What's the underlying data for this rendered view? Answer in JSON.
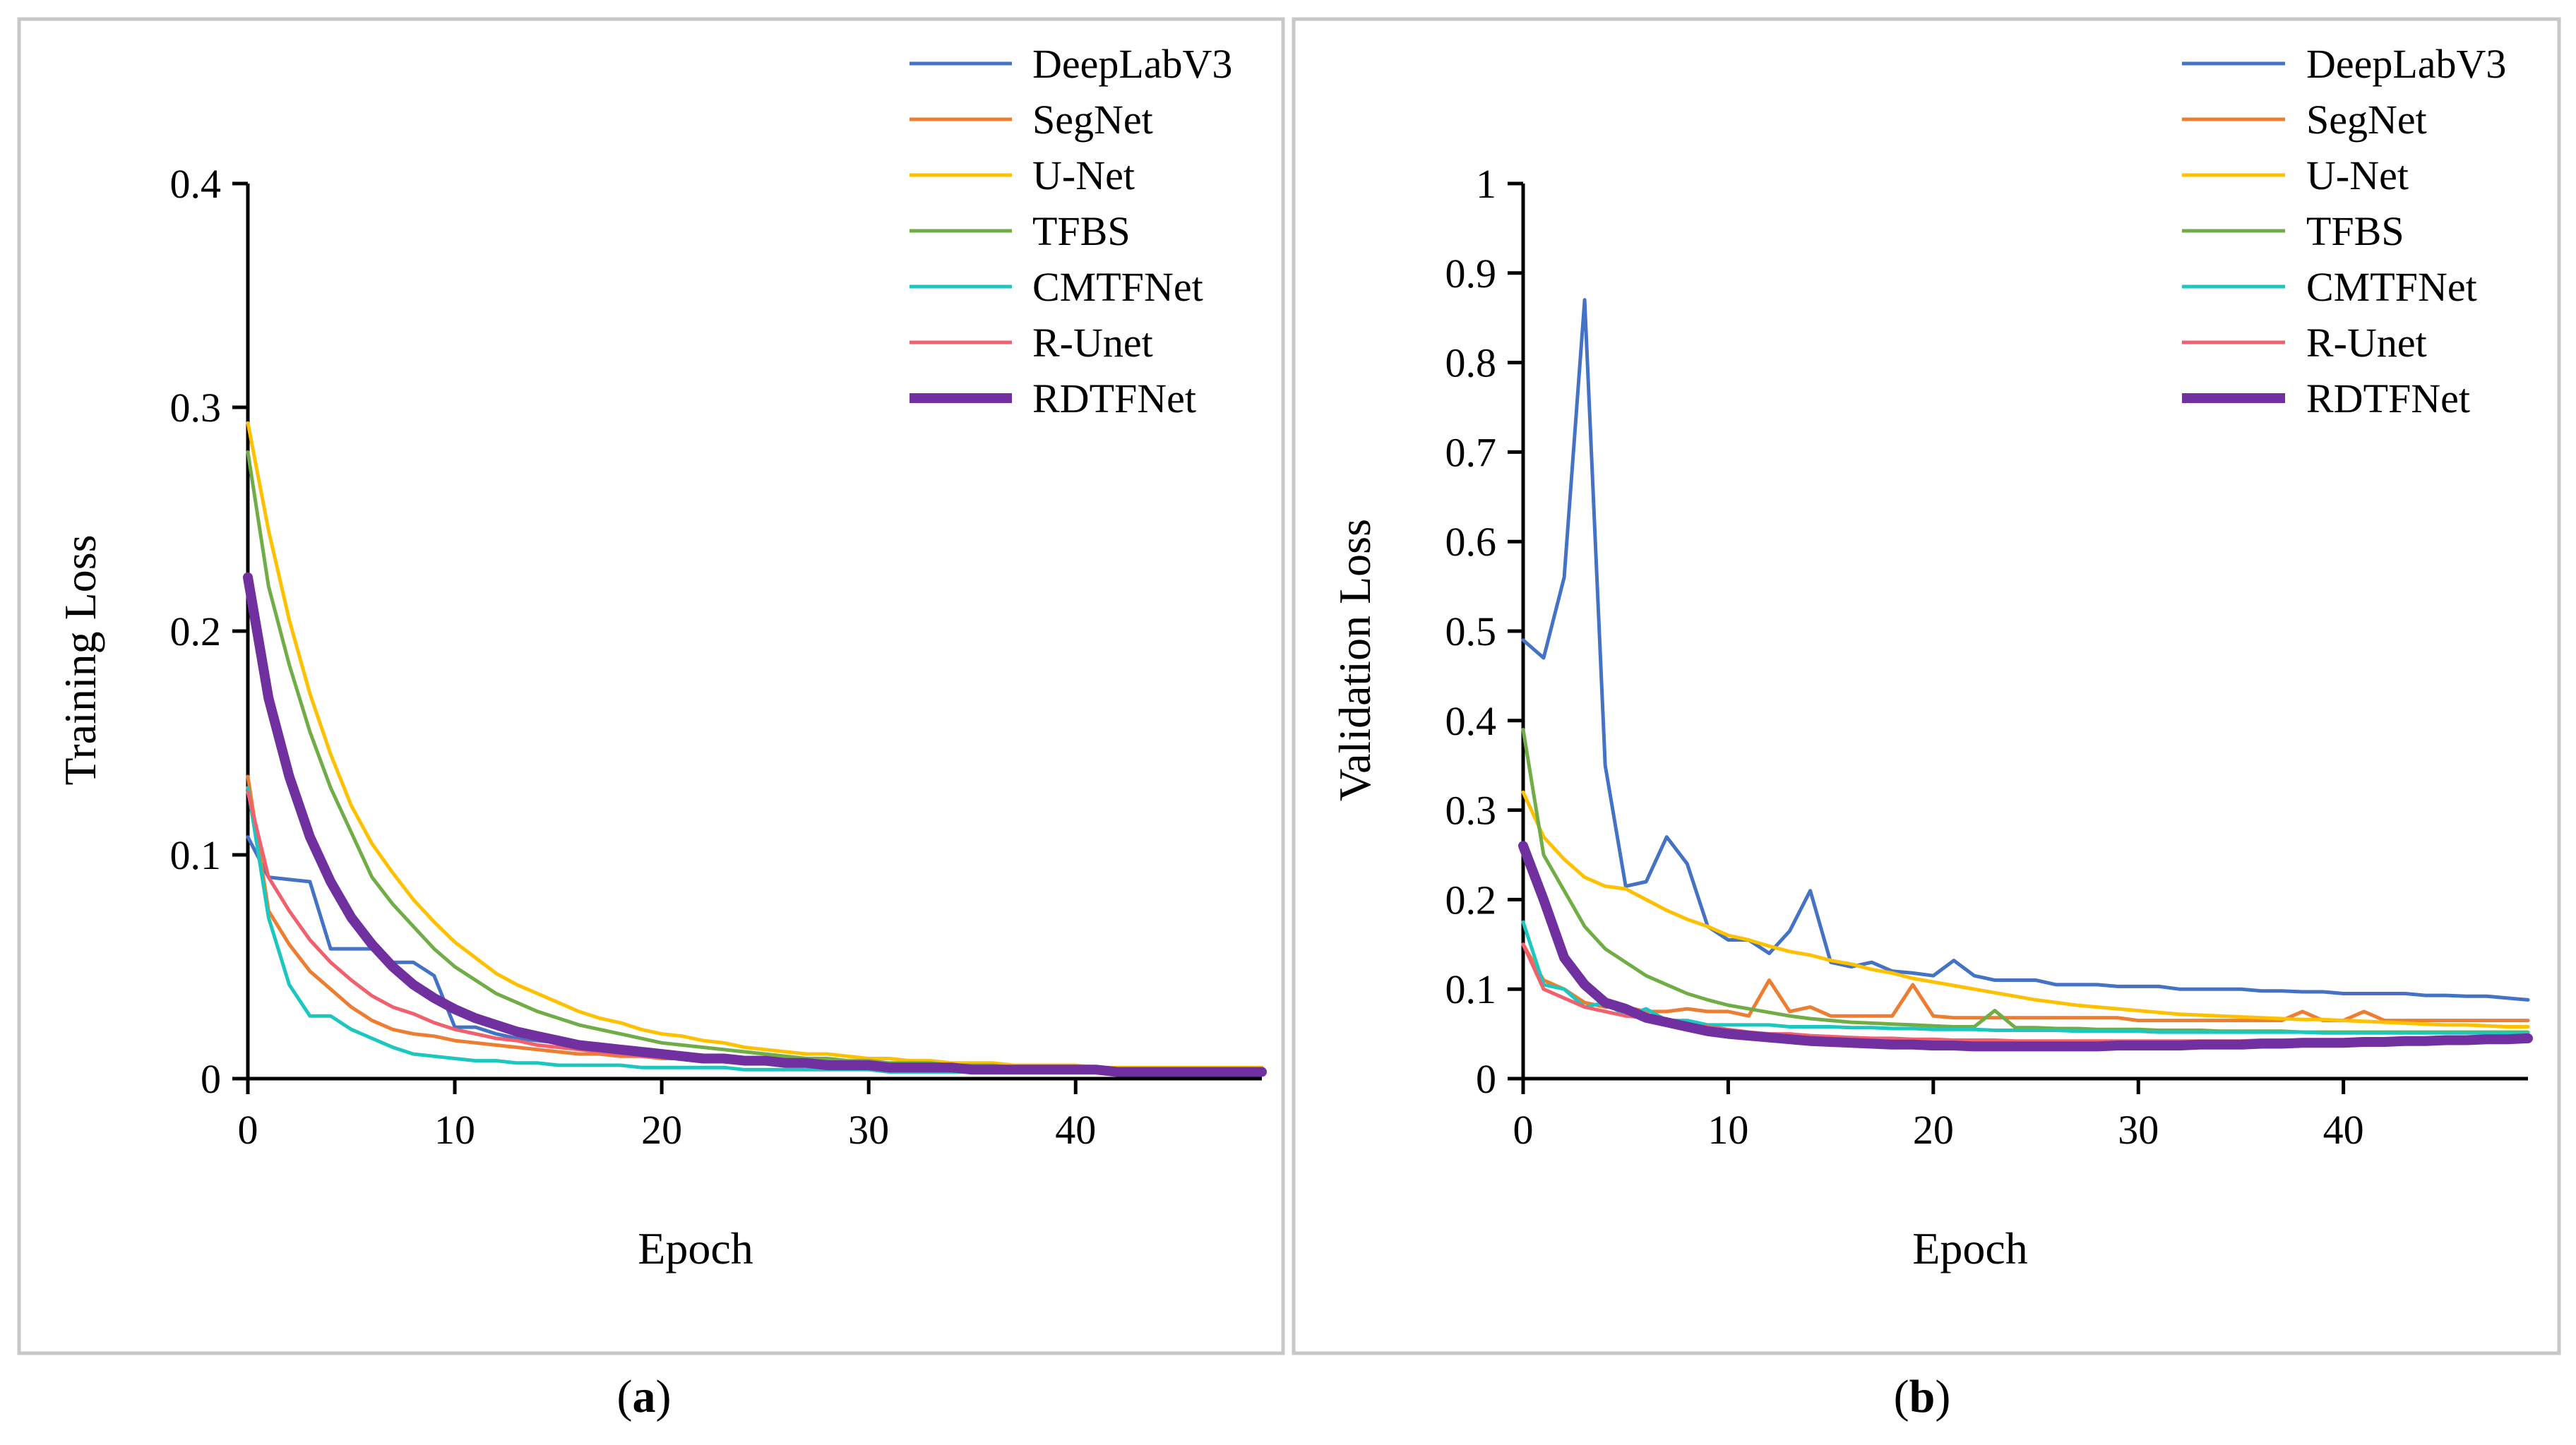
{
  "colors": {
    "DeepLabV3": "#4472C4",
    "SegNet": "#ED7D31",
    "U-Net": "#FFC000",
    "TFBS": "#70AD47",
    "CMTFNet": "#1CC7C0",
    "R-Unet": "#F0606E",
    "RDTFNet": "#7030A0",
    "frame": "#c8c8c8"
  },
  "panels": [
    {
      "caption": "a",
      "chart_data": {
        "type": "line",
        "title": "",
        "xlabel": "Epoch",
        "ylabel": "Training Loss",
        "xlim": [
          0,
          49
        ],
        "ylim": [
          0,
          0.4
        ],
        "xticks": [
          0,
          10,
          20,
          30,
          40
        ],
        "yticks": [
          0,
          0.1,
          0.2,
          0.3,
          0.4
        ],
        "ytick_labels": [
          "0",
          "0.1",
          "0.2",
          "0.3",
          "0.4"
        ],
        "legend_position": "top-right",
        "series": [
          {
            "name": "DeepLabV3",
            "values": [
              0.108,
              0.09,
              0.089,
              0.088,
              0.058,
              0.058,
              0.058,
              0.052,
              0.052,
              0.046,
              0.023,
              0.023,
              0.02,
              0.018,
              0.017,
              0.016,
              0.015,
              0.014,
              0.013,
              0.012,
              0.011,
              0.01,
              0.009,
              0.009,
              0.008,
              0.008,
              0.007,
              0.007,
              0.007,
              0.006,
              0.006,
              0.006,
              0.005,
              0.005,
              0.005,
              0.005,
              0.004,
              0.004,
              0.004,
              0.004,
              0.004,
              0.003,
              0.003,
              0.003,
              0.003,
              0.003,
              0.003,
              0.003,
              0.003,
              0.003
            ]
          },
          {
            "name": "SegNet",
            "values": [
              0.135,
              0.075,
              0.06,
              0.048,
              0.04,
              0.032,
              0.026,
              0.022,
              0.02,
              0.019,
              0.017,
              0.016,
              0.015,
              0.014,
              0.013,
              0.012,
              0.011,
              0.011,
              0.01,
              0.01,
              0.009,
              0.009,
              0.008,
              0.008,
              0.008,
              0.007,
              0.007,
              0.007,
              0.006,
              0.006,
              0.006,
              0.006,
              0.005,
              0.005,
              0.005,
              0.005,
              0.005,
              0.005,
              0.004,
              0.004,
              0.004,
              0.004,
              0.004,
              0.004,
              0.004,
              0.004,
              0.004,
              0.004,
              0.004,
              0.004
            ]
          },
          {
            "name": "U-Net",
            "values": [
              0.293,
              0.245,
              0.205,
              0.172,
              0.145,
              0.122,
              0.105,
              0.092,
              0.08,
              0.07,
              0.061,
              0.054,
              0.047,
              0.042,
              0.038,
              0.034,
              0.03,
              0.027,
              0.025,
              0.022,
              0.02,
              0.019,
              0.017,
              0.016,
              0.014,
              0.013,
              0.012,
              0.011,
              0.011,
              0.01,
              0.009,
              0.009,
              0.008,
              0.008,
              0.007,
              0.007,
              0.007,
              0.006,
              0.006,
              0.006,
              0.006,
              0.005,
              0.005,
              0.005,
              0.005,
              0.005,
              0.005,
              0.005,
              0.005,
              0.005
            ]
          },
          {
            "name": "TFBS",
            "values": [
              0.28,
              0.22,
              0.185,
              0.155,
              0.13,
              0.11,
              0.09,
              0.078,
              0.068,
              0.058,
              0.05,
              0.044,
              0.038,
              0.034,
              0.03,
              0.027,
              0.024,
              0.022,
              0.02,
              0.018,
              0.016,
              0.015,
              0.014,
              0.013,
              0.012,
              0.011,
              0.01,
              0.009,
              0.009,
              0.008,
              0.008,
              0.007,
              0.007,
              0.007,
              0.006,
              0.006,
              0.006,
              0.005,
              0.005,
              0.005,
              0.005,
              0.005,
              0.004,
              0.004,
              0.004,
              0.004,
              0.004,
              0.004,
              0.004,
              0.004
            ]
          },
          {
            "name": "CMTFNet",
            "values": [
              0.13,
              0.072,
              0.042,
              0.028,
              0.028,
              0.022,
              0.018,
              0.014,
              0.011,
              0.01,
              0.009,
              0.008,
              0.008,
              0.007,
              0.007,
              0.006,
              0.006,
              0.006,
              0.006,
              0.005,
              0.005,
              0.005,
              0.005,
              0.005,
              0.004,
              0.004,
              0.004,
              0.004,
              0.004,
              0.004,
              0.004,
              0.003,
              0.003,
              0.003,
              0.003,
              0.003,
              0.003,
              0.003,
              0.003,
              0.003,
              0.003,
              0.003,
              0.003,
              0.003,
              0.003,
              0.003,
              0.003,
              0.003,
              0.003,
              0.003
            ]
          },
          {
            "name": "R-Unet",
            "values": [
              0.128,
              0.09,
              0.075,
              0.062,
              0.052,
              0.044,
              0.037,
              0.032,
              0.029,
              0.025,
              0.022,
              0.02,
              0.018,
              0.017,
              0.015,
              0.014,
              0.013,
              0.012,
              0.011,
              0.01,
              0.01,
              0.009,
              0.009,
              0.008,
              0.008,
              0.007,
              0.007,
              0.007,
              0.006,
              0.006,
              0.006,
              0.005,
              0.005,
              0.005,
              0.005,
              0.005,
              0.004,
              0.004,
              0.004,
              0.004,
              0.004,
              0.004,
              0.004,
              0.004,
              0.004,
              0.004,
              0.004,
              0.004,
              0.004,
              0.004
            ]
          },
          {
            "name": "RDTFNet",
            "values": [
              0.224,
              0.17,
              0.135,
              0.108,
              0.088,
              0.072,
              0.06,
              0.05,
              0.042,
              0.036,
              0.031,
              0.027,
              0.024,
              0.021,
              0.019,
              0.017,
              0.015,
              0.014,
              0.013,
              0.012,
              0.011,
              0.01,
              0.009,
              0.009,
              0.008,
              0.008,
              0.007,
              0.007,
              0.006,
              0.006,
              0.006,
              0.005,
              0.005,
              0.005,
              0.005,
              0.004,
              0.004,
              0.004,
              0.004,
              0.004,
              0.004,
              0.004,
              0.003,
              0.003,
              0.003,
              0.003,
              0.003,
              0.003,
              0.003,
              0.003
            ]
          }
        ]
      }
    },
    {
      "caption": "b",
      "chart_data": {
        "type": "line",
        "title": "",
        "xlabel": "Epoch",
        "ylabel": "Validation Loss",
        "xlim": [
          0,
          49
        ],
        "ylim": [
          0,
          1
        ],
        "xticks": [
          0,
          10,
          20,
          30,
          40
        ],
        "yticks": [
          0,
          0.1,
          0.2,
          0.3,
          0.4,
          0.5,
          0.6,
          0.7,
          0.8,
          0.9,
          1
        ],
        "ytick_labels": [
          "0",
          "0.1",
          "0.2",
          "0.3",
          "0.4",
          "0.5",
          "0.6",
          "0.7",
          "0.8",
          "0.9",
          "1"
        ],
        "legend_position": "top-right",
        "series": [
          {
            "name": "DeepLabV3",
            "values": [
              0.49,
              0.47,
              0.56,
              0.87,
              0.35,
              0.215,
              0.22,
              0.27,
              0.24,
              0.17,
              0.155,
              0.155,
              0.14,
              0.165,
              0.21,
              0.13,
              0.125,
              0.13,
              0.12,
              0.118,
              0.115,
              0.132,
              0.115,
              0.11,
              0.11,
              0.11,
              0.105,
              0.105,
              0.105,
              0.103,
              0.103,
              0.103,
              0.1,
              0.1,
              0.1,
              0.1,
              0.098,
              0.098,
              0.097,
              0.097,
              0.095,
              0.095,
              0.095,
              0.095,
              0.093,
              0.093,
              0.092,
              0.092,
              0.09,
              0.088
            ]
          },
          {
            "name": "SegNet",
            "values": [
              0.15,
              0.11,
              0.1,
              0.085,
              0.08,
              0.08,
              0.075,
              0.075,
              0.078,
              0.075,
              0.075,
              0.07,
              0.11,
              0.075,
              0.08,
              0.07,
              0.07,
              0.07,
              0.07,
              0.105,
              0.07,
              0.068,
              0.068,
              0.068,
              0.068,
              0.068,
              0.068,
              0.068,
              0.068,
              0.068,
              0.065,
              0.065,
              0.065,
              0.065,
              0.065,
              0.065,
              0.065,
              0.065,
              0.075,
              0.065,
              0.065,
              0.075,
              0.065,
              0.065,
              0.065,
              0.065,
              0.065,
              0.065,
              0.065,
              0.065
            ]
          },
          {
            "name": "U-Net",
            "values": [
              0.32,
              0.27,
              0.245,
              0.225,
              0.215,
              0.212,
              0.2,
              0.188,
              0.178,
              0.17,
              0.16,
              0.155,
              0.148,
              0.142,
              0.138,
              0.132,
              0.128,
              0.122,
              0.118,
              0.112,
              0.108,
              0.104,
              0.1,
              0.096,
              0.092,
              0.088,
              0.085,
              0.082,
              0.08,
              0.078,
              0.076,
              0.074,
              0.072,
              0.071,
              0.07,
              0.069,
              0.068,
              0.067,
              0.066,
              0.066,
              0.065,
              0.064,
              0.063,
              0.062,
              0.061,
              0.06,
              0.06,
              0.059,
              0.058,
              0.058
            ]
          },
          {
            "name": "TFBS",
            "values": [
              0.39,
              0.25,
              0.21,
              0.17,
              0.145,
              0.13,
              0.115,
              0.105,
              0.095,
              0.088,
              0.082,
              0.078,
              0.074,
              0.07,
              0.067,
              0.065,
              0.063,
              0.062,
              0.061,
              0.06,
              0.059,
              0.058,
              0.058,
              0.076,
              0.057,
              0.057,
              0.056,
              0.056,
              0.055,
              0.055,
              0.055,
              0.054,
              0.054,
              0.054,
              0.053,
              0.053,
              0.053,
              0.053,
              0.052,
              0.052,
              0.052,
              0.052,
              0.052,
              0.052,
              0.052,
              0.052,
              0.052,
              0.052,
              0.052,
              0.052
            ]
          },
          {
            "name": "CMTFNet",
            "values": [
              0.175,
              0.105,
              0.1,
              0.08,
              0.085,
              0.07,
              0.078,
              0.065,
              0.065,
              0.06,
              0.06,
              0.06,
              0.06,
              0.058,
              0.058,
              0.058,
              0.057,
              0.057,
              0.056,
              0.056,
              0.055,
              0.055,
              0.055,
              0.054,
              0.054,
              0.054,
              0.054,
              0.053,
              0.053,
              0.053,
              0.053,
              0.052,
              0.052,
              0.052,
              0.052,
              0.052,
              0.052,
              0.052,
              0.052,
              0.051,
              0.051,
              0.051,
              0.051,
              0.051,
              0.051,
              0.051,
              0.051,
              0.051,
              0.051,
              0.051
            ]
          },
          {
            "name": "R-Unet",
            "values": [
              0.15,
              0.1,
              0.09,
              0.08,
              0.075,
              0.07,
              0.068,
              0.065,
              0.06,
              0.058,
              0.055,
              0.052,
              0.05,
              0.05,
              0.048,
              0.047,
              0.046,
              0.045,
              0.045,
              0.044,
              0.044,
              0.043,
              0.043,
              0.043,
              0.042,
              0.042,
              0.042,
              0.042,
              0.042,
              0.042,
              0.042,
              0.042,
              0.042,
              0.042,
              0.042,
              0.042,
              0.043,
              0.043,
              0.043,
              0.043,
              0.043,
              0.044,
              0.044,
              0.045,
              0.045,
              0.046,
              0.046,
              0.047,
              0.047,
              0.048
            ]
          },
          {
            "name": "RDTFNet",
            "values": [
              0.26,
              0.2,
              0.135,
              0.105,
              0.085,
              0.078,
              0.068,
              0.063,
              0.058,
              0.053,
              0.05,
              0.048,
              0.046,
              0.044,
              0.042,
              0.041,
              0.04,
              0.039,
              0.038,
              0.038,
              0.037,
              0.037,
              0.036,
              0.036,
              0.036,
              0.036,
              0.036,
              0.036,
              0.036,
              0.037,
              0.037,
              0.037,
              0.037,
              0.038,
              0.038,
              0.038,
              0.039,
              0.039,
              0.04,
              0.04,
              0.04,
              0.041,
              0.041,
              0.042,
              0.042,
              0.043,
              0.043,
              0.044,
              0.044,
              0.045
            ]
          }
        ]
      }
    }
  ]
}
